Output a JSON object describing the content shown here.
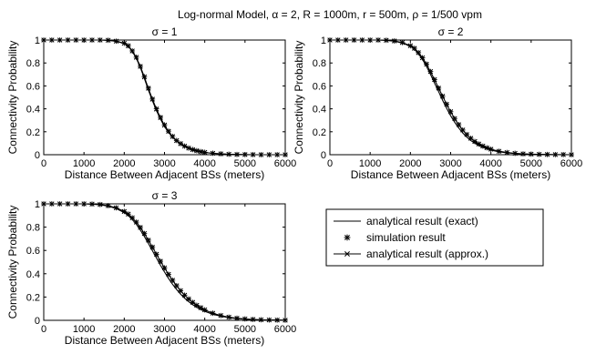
{
  "figure": {
    "suptitle": "Log-normal Model, α = 2, R = 1000m, r = 500m, ρ = 1/500 vpm"
  },
  "legend": {
    "placement": "bottom-right",
    "entries": [
      {
        "label": "analytical result (exact)",
        "marker": "line"
      },
      {
        "label": "simulation result",
        "marker": "asterisk"
      },
      {
        "label": "analytical result (approx.)",
        "marker": "line-x"
      }
    ]
  },
  "chart_data": [
    {
      "type": "line",
      "title": "σ = 1",
      "xlabel": "Distance Between Adjacent BSs (meters)",
      "ylabel": "Connectivity Probability",
      "xlim": [
        0,
        6000
      ],
      "ylim": [
        0,
        1
      ],
      "xticks": [
        "0",
        "1000",
        "2000",
        "3000",
        "4000",
        "5000",
        "6000"
      ],
      "yticks": [
        "0",
        "0.2",
        "0.4",
        "0.6",
        "0.8",
        "1"
      ],
      "grid": false,
      "x": [
        0,
        200,
        400,
        600,
        800,
        1000,
        1200,
        1400,
        1600,
        1800,
        2000,
        2100,
        2200,
        2300,
        2400,
        2500,
        2600,
        2700,
        2800,
        2900,
        3000,
        3100,
        3200,
        3300,
        3400,
        3500,
        3600,
        3700,
        3800,
        3900,
        4000,
        4200,
        4400,
        4600,
        4800,
        5000,
        5200,
        5400,
        5600,
        5800,
        6000
      ],
      "series": [
        {
          "name": "analytical result (exact)",
          "values": [
            1,
            1,
            1,
            1,
            1,
            1,
            1,
            1,
            0.998,
            0.99,
            0.97,
            0.945,
            0.9,
            0.84,
            0.76,
            0.665,
            0.565,
            0.47,
            0.385,
            0.31,
            0.245,
            0.195,
            0.152,
            0.118,
            0.092,
            0.072,
            0.056,
            0.043,
            0.034,
            0.026,
            0.02,
            0.012,
            0.007,
            0.004,
            0.002,
            0.001,
            0,
            0,
            0,
            0,
            0
          ]
        },
        {
          "name": "simulation result",
          "values": [
            1,
            1,
            1,
            1,
            1,
            1,
            1,
            1,
            0.998,
            0.99,
            0.972,
            0.95,
            0.905,
            0.85,
            0.77,
            0.68,
            0.58,
            0.485,
            0.4,
            0.325,
            0.26,
            0.205,
            0.16,
            0.124,
            0.097,
            0.075,
            0.058,
            0.045,
            0.035,
            0.027,
            0.021,
            0.013,
            0.008,
            0.004,
            0.002,
            0.001,
            0.001,
            0,
            0,
            0,
            0
          ]
        },
        {
          "name": "analytical result (approx.)",
          "values": [
            1,
            1,
            1,
            1,
            1,
            1,
            1,
            1,
            0.998,
            0.99,
            0.972,
            0.948,
            0.905,
            0.848,
            0.77,
            0.678,
            0.578,
            0.483,
            0.397,
            0.322,
            0.257,
            0.203,
            0.158,
            0.122,
            0.095,
            0.074,
            0.057,
            0.044,
            0.034,
            0.026,
            0.02,
            0.012,
            0.007,
            0.004,
            0.002,
            0.001,
            0,
            0,
            0,
            0,
            0
          ]
        }
      ]
    },
    {
      "type": "line",
      "title": "σ = 2",
      "xlabel": "Distance Between Adjacent BSs (meters)",
      "ylabel": "Connectivity Probability",
      "xlim": [
        0,
        6000
      ],
      "ylim": [
        0,
        1
      ],
      "xticks": [
        "0",
        "1000",
        "2000",
        "3000",
        "4000",
        "5000",
        "6000"
      ],
      "yticks": [
        "0",
        "0.2",
        "0.4",
        "0.6",
        "0.8",
        "1"
      ],
      "grid": false,
      "x": [
        0,
        200,
        400,
        600,
        800,
        1000,
        1200,
        1400,
        1600,
        1800,
        2000,
        2100,
        2200,
        2300,
        2400,
        2500,
        2600,
        2700,
        2800,
        2900,
        3000,
        3100,
        3200,
        3300,
        3400,
        3500,
        3600,
        3700,
        3800,
        3900,
        4000,
        4200,
        4400,
        4600,
        4800,
        5000,
        5200,
        5400,
        5600,
        5800,
        6000
      ],
      "series": [
        {
          "name": "analytical result (exact)",
          "values": [
            1,
            1,
            1,
            1,
            1,
            1,
            1,
            0.998,
            0.99,
            0.975,
            0.945,
            0.92,
            0.88,
            0.83,
            0.77,
            0.7,
            0.625,
            0.55,
            0.475,
            0.405,
            0.34,
            0.283,
            0.233,
            0.19,
            0.154,
            0.124,
            0.1,
            0.08,
            0.064,
            0.051,
            0.04,
            0.025,
            0.016,
            0.01,
            0.006,
            0.004,
            0.002,
            0.001,
            0.001,
            0,
            0
          ]
        },
        {
          "name": "simulation result",
          "values": [
            1,
            1,
            1,
            1,
            1,
            1,
            1,
            0.998,
            0.992,
            0.978,
            0.95,
            0.928,
            0.89,
            0.845,
            0.79,
            0.725,
            0.655,
            0.58,
            0.51,
            0.44,
            0.375,
            0.315,
            0.262,
            0.215,
            0.176,
            0.143,
            0.115,
            0.093,
            0.075,
            0.06,
            0.048,
            0.03,
            0.019,
            0.012,
            0.007,
            0.005,
            0.003,
            0.002,
            0.001,
            0.001,
            0
          ]
        },
        {
          "name": "analytical result (approx.)",
          "values": [
            1,
            1,
            1,
            1,
            1,
            1,
            1,
            0.998,
            0.992,
            0.978,
            0.95,
            0.928,
            0.89,
            0.845,
            0.79,
            0.725,
            0.655,
            0.58,
            0.51,
            0.44,
            0.375,
            0.315,
            0.262,
            0.215,
            0.176,
            0.143,
            0.115,
            0.093,
            0.075,
            0.06,
            0.048,
            0.03,
            0.019,
            0.012,
            0.007,
            0.005,
            0.003,
            0.002,
            0.001,
            0.001,
            0
          ]
        }
      ]
    },
    {
      "type": "line",
      "title": "σ = 3",
      "xlabel": "Distance Between Adjacent BSs (meters)",
      "ylabel": "Connectivity Probability",
      "xlim": [
        0,
        6000
      ],
      "ylim": [
        0,
        1
      ],
      "xticks": [
        "0",
        "1000",
        "2000",
        "3000",
        "4000",
        "5000",
        "6000"
      ],
      "yticks": [
        "0",
        "0.2",
        "0.4",
        "0.6",
        "0.8",
        "1"
      ],
      "grid": false,
      "x": [
        0,
        200,
        400,
        600,
        800,
        1000,
        1200,
        1400,
        1600,
        1800,
        2000,
        2100,
        2200,
        2300,
        2400,
        2500,
        2600,
        2700,
        2800,
        2900,
        3000,
        3100,
        3200,
        3300,
        3400,
        3500,
        3600,
        3700,
        3800,
        3900,
        4000,
        4200,
        4400,
        4600,
        4800,
        5000,
        5200,
        5400,
        5600,
        5800,
        6000
      ],
      "series": [
        {
          "name": "analytical result (exact)",
          "values": [
            1,
            1,
            1,
            1,
            1,
            1,
            0.998,
            0.992,
            0.98,
            0.96,
            0.925,
            0.9,
            0.865,
            0.825,
            0.775,
            0.72,
            0.66,
            0.597,
            0.535,
            0.473,
            0.415,
            0.36,
            0.31,
            0.265,
            0.225,
            0.19,
            0.16,
            0.134,
            0.112,
            0.093,
            0.077,
            0.052,
            0.035,
            0.023,
            0.015,
            0.01,
            0.006,
            0.004,
            0.003,
            0.002,
            0.001
          ]
        },
        {
          "name": "simulation result",
          "values": [
            1,
            1,
            1,
            1,
            1,
            1,
            0.998,
            0.994,
            0.984,
            0.966,
            0.935,
            0.912,
            0.88,
            0.843,
            0.797,
            0.745,
            0.688,
            0.628,
            0.567,
            0.507,
            0.45,
            0.395,
            0.344,
            0.297,
            0.254,
            0.216,
            0.183,
            0.154,
            0.129,
            0.108,
            0.09,
            0.061,
            0.041,
            0.027,
            0.018,
            0.012,
            0.008,
            0.005,
            0.003,
            0.002,
            0.001
          ]
        },
        {
          "name": "analytical result (approx.)",
          "values": [
            1,
            1,
            1,
            1,
            1,
            1,
            0.998,
            0.994,
            0.984,
            0.966,
            0.935,
            0.912,
            0.88,
            0.843,
            0.797,
            0.745,
            0.688,
            0.628,
            0.567,
            0.507,
            0.45,
            0.395,
            0.344,
            0.297,
            0.254,
            0.216,
            0.183,
            0.154,
            0.129,
            0.108,
            0.09,
            0.061,
            0.041,
            0.027,
            0.018,
            0.012,
            0.008,
            0.005,
            0.003,
            0.002,
            0.001
          ]
        }
      ]
    }
  ]
}
